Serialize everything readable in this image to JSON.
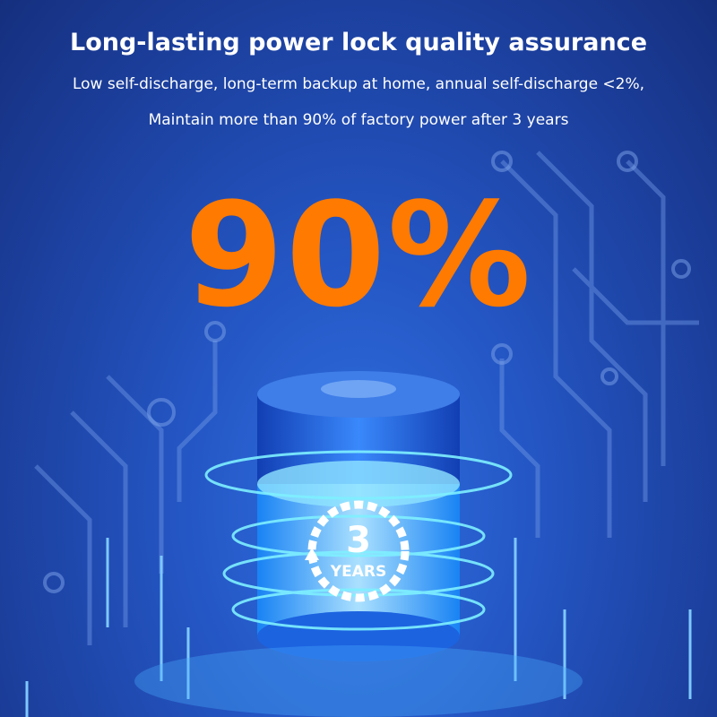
{
  "header": {
    "title": "Long-lasting power lock quality assurance",
    "line1": "Low self-discharge, long-term backup at home, annual self-discharge <2%,",
    "line2": "Maintain more than 90% of factory power after 3 years"
  },
  "highlight": {
    "value": "90%",
    "color": "#ff7a00"
  },
  "badge": {
    "number": "3",
    "label": "YEARS",
    "icon": "cycle-arrow-icon"
  }
}
